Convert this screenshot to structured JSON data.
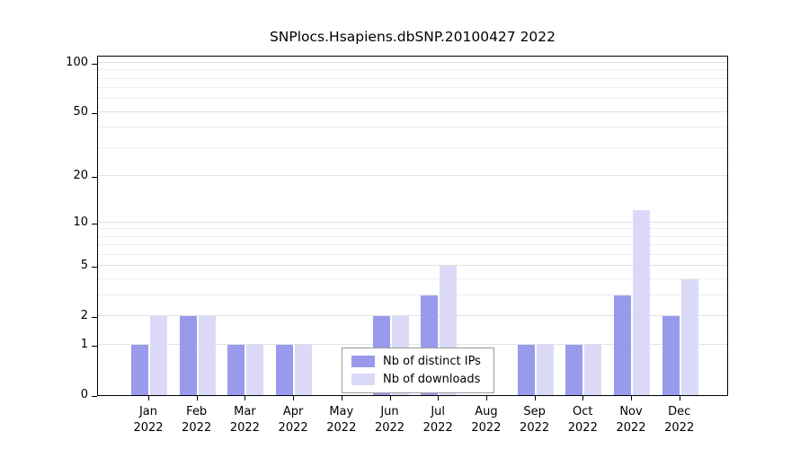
{
  "chart_data": {
    "type": "bar",
    "title": "SNPlocs.Hsapiens.dbSNP.20100427 2022",
    "categories": [
      "Jan 2022",
      "Feb 2022",
      "Mar 2022",
      "Apr 2022",
      "May 2022",
      "Jun 2022",
      "Jul 2022",
      "Aug 2022",
      "Sep 2022",
      "Oct 2022",
      "Nov 2022",
      "Dec 2022"
    ],
    "series": [
      {
        "name": "Nb of distinct IPs",
        "color": "#9a9aec",
        "values": [
          1,
          2,
          1,
          1,
          0,
          2,
          3,
          0,
          1,
          1,
          3,
          2
        ]
      },
      {
        "name": "Nb of downloads",
        "color": "#dadaf8",
        "values": [
          2,
          2,
          1,
          1,
          0,
          2,
          5,
          0,
          1,
          1,
          12,
          4
        ]
      }
    ],
    "xlabel": "",
    "ylabel": "",
    "yticks": [
      0,
      1,
      2,
      5,
      10,
      20,
      50,
      100
    ],
    "ylim": [
      0,
      111
    ],
    "scale": "log10(1+x)",
    "grid": true,
    "legend_position": "bottom-center"
  }
}
